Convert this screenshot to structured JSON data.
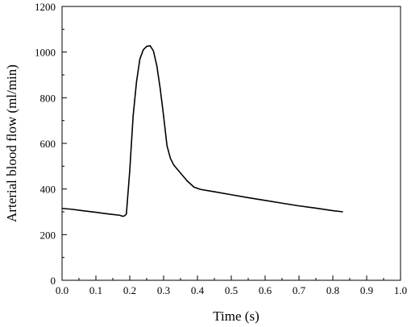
{
  "chart_data": {
    "type": "line",
    "title": "",
    "xlabel": "Time (s)",
    "ylabel": "Arterial blood flow (ml/min)",
    "xlim": [
      0.0,
      1.0
    ],
    "ylim": [
      0,
      1200
    ],
    "x_ticks": [
      0.0,
      0.1,
      0.2,
      0.3,
      0.4,
      0.5,
      0.6,
      0.7,
      0.8,
      0.9,
      1.0
    ],
    "x_tick_labels": [
      "0.0",
      "0.1",
      "0.2",
      "0.3",
      "0.4",
      "0.5",
      "0.6",
      "0.7",
      "0.8",
      "0.9",
      "1.0"
    ],
    "y_ticks": [
      0,
      200,
      400,
      600,
      800,
      1000,
      1200
    ],
    "y_tick_labels": [
      "0",
      "200",
      "400",
      "600",
      "800",
      "1000",
      "1200"
    ],
    "grid": false,
    "legend": "none",
    "series": [
      {
        "color": "#000000",
        "x": [
          0.0,
          0.03,
          0.06,
          0.1,
          0.14,
          0.17,
          0.18,
          0.185,
          0.19,
          0.2,
          0.21,
          0.22,
          0.23,
          0.24,
          0.25,
          0.26,
          0.27,
          0.28,
          0.29,
          0.3,
          0.31,
          0.32,
          0.33,
          0.35,
          0.37,
          0.39,
          0.41,
          0.45,
          0.5,
          0.55,
          0.6,
          0.65,
          0.7,
          0.75,
          0.8,
          0.83
        ],
        "y": [
          315,
          311,
          305,
          298,
          290,
          285,
          280,
          283,
          290,
          480,
          720,
          870,
          970,
          1010,
          1025,
          1028,
          1005,
          940,
          840,
          720,
          590,
          535,
          505,
          470,
          435,
          408,
          398,
          388,
          375,
          362,
          350,
          338,
          326,
          316,
          305,
          300
        ]
      }
    ]
  }
}
